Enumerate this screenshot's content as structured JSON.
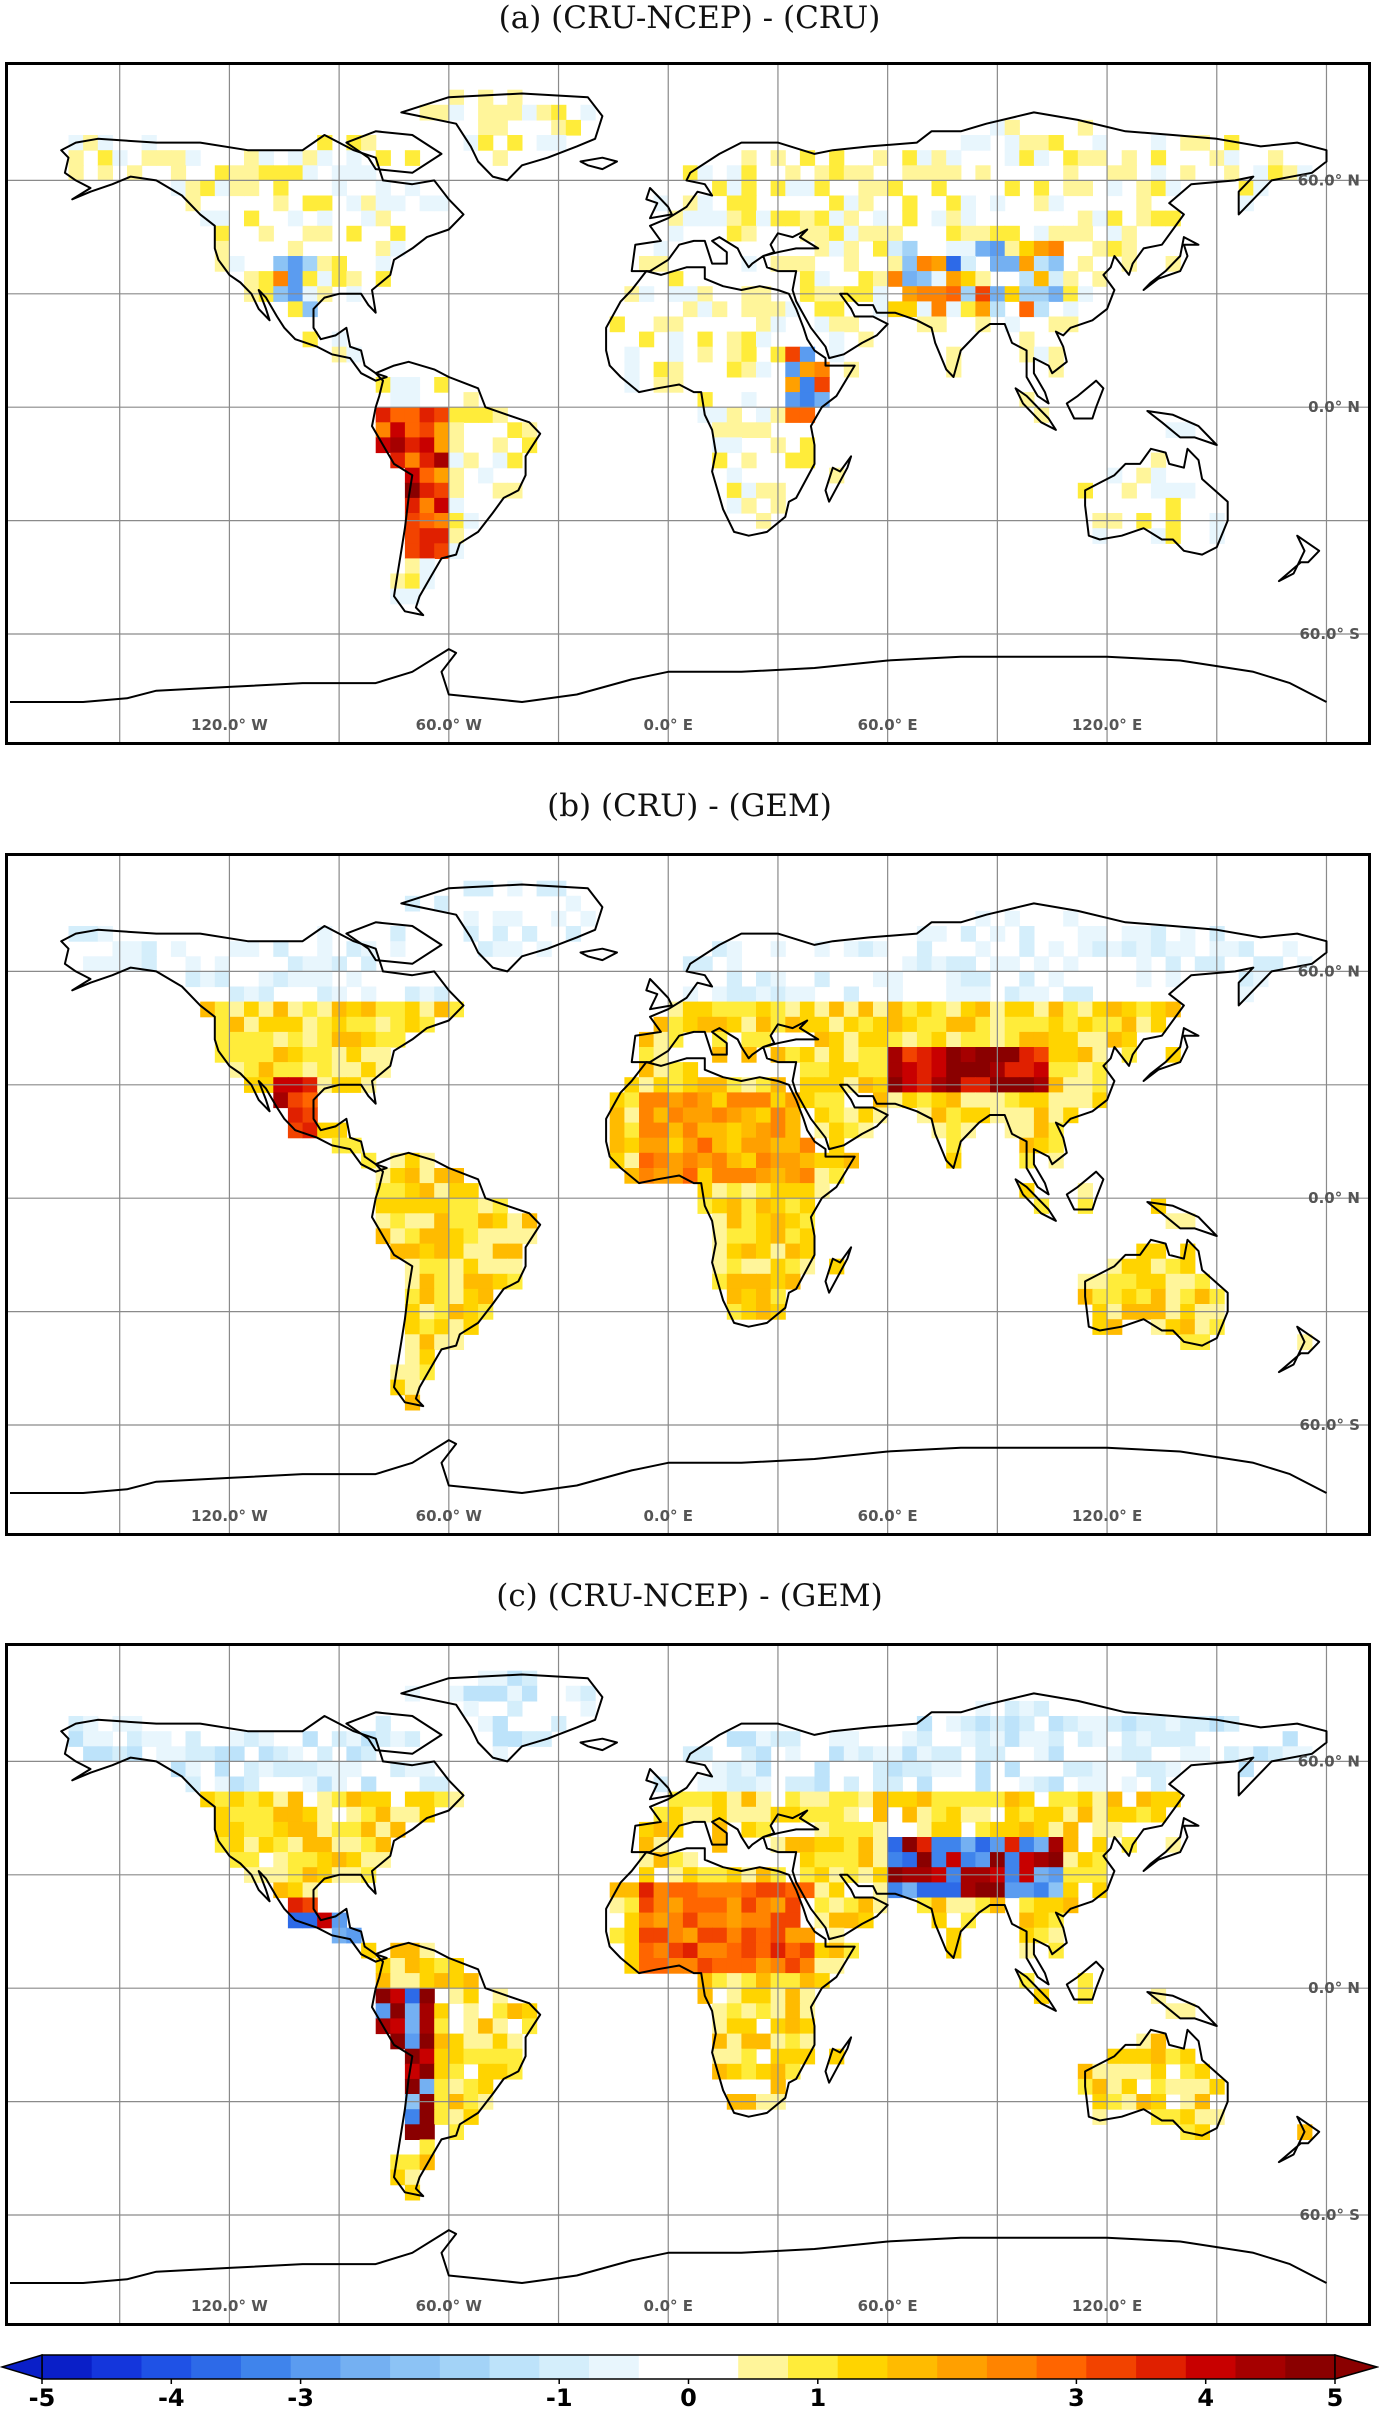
{
  "panels": [
    {
      "title": "(a) (CRU-NCEP) - (CRU)",
      "pattern": "a"
    },
    {
      "title": "(b) (CRU) - (GEM)",
      "pattern": "b"
    },
    {
      "title": "(c) (CRU-NCEP) - (GEM)",
      "pattern": "c"
    }
  ],
  "lon_labels": [
    "120.0° W",
    "60.0° W",
    "0.0° E",
    "60.0° E",
    "120.0° E"
  ],
  "lat_labels": [
    "60.0° N",
    "0.0° N",
    "60.0° S"
  ],
  "colorbar": {
    "ticks": [
      "-5",
      "-4",
      "-3",
      "-1",
      "0",
      "1",
      "3",
      "4",
      "5"
    ],
    "colors": [
      "#0a1fc8",
      "#1436dc",
      "#1f52e6",
      "#2d6ae8",
      "#3f84ec",
      "#5b9cf0",
      "#74b0f2",
      "#8cc3f5",
      "#a3d3f7",
      "#bde3fa",
      "#d4eefb",
      "#e8f6fd",
      "#ffffff",
      "#ffffff",
      "#fff59a",
      "#ffec3a",
      "#ffd400",
      "#ffbb00",
      "#ffa000",
      "#ff8400",
      "#ff6500",
      "#f24300",
      "#e02000",
      "#c80000",
      "#a50000",
      "#8a0000"
    ],
    "min": -5,
    "max": 5
  }
}
